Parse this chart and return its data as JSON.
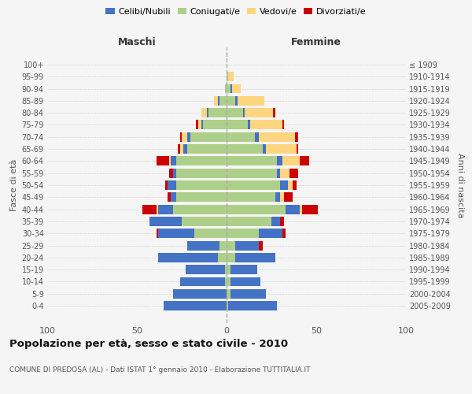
{
  "age_groups": [
    "0-4",
    "5-9",
    "10-14",
    "15-19",
    "20-24",
    "25-29",
    "30-34",
    "35-39",
    "40-44",
    "45-49",
    "50-54",
    "55-59",
    "60-64",
    "65-69",
    "70-74",
    "75-79",
    "80-84",
    "85-89",
    "90-94",
    "95-99",
    "100+"
  ],
  "birth_years": [
    "2005-2009",
    "2000-2004",
    "1995-1999",
    "1990-1994",
    "1985-1989",
    "1980-1984",
    "1975-1979",
    "1970-1974",
    "1965-1969",
    "1960-1964",
    "1955-1959",
    "1950-1954",
    "1945-1949",
    "1940-1944",
    "1935-1939",
    "1930-1934",
    "1925-1929",
    "1920-1924",
    "1915-1919",
    "1910-1914",
    "≤ 1909"
  ],
  "maschi": {
    "coniugati": [
      0,
      0,
      1,
      1,
      5,
      4,
      18,
      25,
      30,
      28,
      28,
      28,
      28,
      22,
      20,
      13,
      10,
      4,
      1,
      0,
      0
    ],
    "celibi": [
      35,
      30,
      25,
      22,
      33,
      18,
      20,
      18,
      8,
      3,
      5,
      2,
      3,
      2,
      2,
      1,
      1,
      1,
      0,
      0,
      0
    ],
    "vedovi": [
      0,
      0,
      0,
      0,
      0,
      0,
      0,
      0,
      1,
      0,
      0,
      0,
      1,
      2,
      3,
      2,
      3,
      2,
      0,
      0,
      0
    ],
    "divorziati": [
      0,
      0,
      0,
      0,
      0,
      0,
      1,
      0,
      8,
      2,
      1,
      2,
      7,
      1,
      1,
      1,
      0,
      0,
      0,
      0,
      0
    ]
  },
  "femmine": {
    "coniugate": [
      1,
      2,
      2,
      2,
      5,
      5,
      18,
      25,
      33,
      27,
      30,
      28,
      28,
      20,
      16,
      12,
      9,
      5,
      2,
      1,
      0
    ],
    "nubili": [
      27,
      20,
      17,
      15,
      22,
      13,
      13,
      5,
      8,
      3,
      4,
      2,
      3,
      2,
      2,
      1,
      1,
      1,
      1,
      0,
      0
    ],
    "vedove": [
      0,
      0,
      0,
      0,
      0,
      0,
      0,
      0,
      1,
      2,
      3,
      5,
      10,
      17,
      20,
      18,
      16,
      15,
      5,
      3,
      0
    ],
    "divorziate": [
      0,
      0,
      0,
      0,
      0,
      2,
      2,
      2,
      9,
      5,
      2,
      5,
      5,
      1,
      2,
      1,
      1,
      0,
      0,
      0,
      0
    ]
  },
  "colors": {
    "celibi_nubili": "#4472C4",
    "coniugati_e": "#AECF8A",
    "vedovi_e": "#FFD580",
    "divorziati_e": "#CC0000"
  },
  "xlim": 100,
  "title": "Popolazione per età, sesso e stato civile - 2010",
  "subtitle": "COMUNE DI PREDOSA (AL) - Dati ISTAT 1° gennaio 2010 - Elaborazione TUTTITALIA.IT",
  "ylabel_left": "Fasce di età",
  "ylabel_right": "Anni di nascita",
  "xlabel_left": "Maschi",
  "xlabel_right": "Femmine",
  "background_color": "#f5f5f5",
  "grid_color": "#cccccc"
}
